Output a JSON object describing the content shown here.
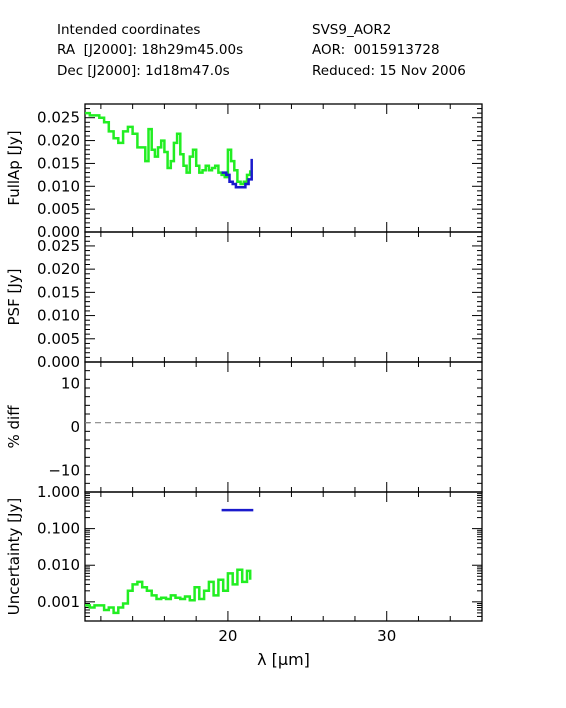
{
  "header": {
    "left": [
      "Intended coordinates",
      "RA  [J2000]: 18h29m45.00s",
      "Dec [J2000]: 1d18m47.0s"
    ],
    "right": [
      "SVS9_AOR2",
      "AOR:  0015913728",
      "Reduced: 15 Nov 2006"
    ]
  },
  "colors": {
    "green": "#22ee22",
    "blue": "#1a1acc",
    "dash": "#888888"
  },
  "chart_data": [
    {
      "type": "line",
      "ylabel": "FullAp [Jy]",
      "xlim": [
        11,
        36
      ],
      "ylim": [
        0,
        0.028
      ],
      "yticks": [
        0.0,
        0.005,
        0.01,
        0.015,
        0.02,
        0.025
      ],
      "ytick_labels": [
        "0.000",
        "0.005",
        "0.010",
        "0.015",
        "0.020",
        "0.025"
      ],
      "series": [
        {
          "color": "green",
          "x": [
            11.0,
            11.3,
            11.6,
            11.9,
            12.2,
            12.5,
            12.8,
            13.1,
            13.4,
            13.7,
            14.0,
            14.3,
            14.6,
            14.8,
            15.0,
            15.2,
            15.4,
            15.6,
            15.8,
            16.0,
            16.2,
            16.4,
            16.6,
            16.8,
            17.0,
            17.2,
            17.4,
            17.6,
            17.8,
            18.0,
            18.2,
            18.4,
            18.6,
            18.8,
            19.0,
            19.2,
            19.4,
            19.6,
            19.8,
            20.0,
            20.2,
            20.4,
            20.6,
            20.8,
            21.0,
            21.2,
            21.4
          ],
          "y": [
            0.026,
            0.0255,
            0.0255,
            0.025,
            0.024,
            0.022,
            0.0205,
            0.0195,
            0.022,
            0.023,
            0.0215,
            0.0185,
            0.0185,
            0.0155,
            0.0225,
            0.018,
            0.0165,
            0.0185,
            0.02,
            0.0175,
            0.014,
            0.0155,
            0.0195,
            0.0215,
            0.017,
            0.0145,
            0.013,
            0.0165,
            0.018,
            0.0145,
            0.013,
            0.0135,
            0.0145,
            0.0135,
            0.014,
            0.0145,
            0.013,
            0.0125,
            0.012,
            0.018,
            0.0155,
            0.0135,
            0.011,
            0.0105,
            0.011,
            0.0125,
            0.0135
          ]
        },
        {
          "color": "blue",
          "x": [
            19.6,
            19.9,
            20.1,
            20.3,
            20.5,
            20.7,
            20.9,
            21.1,
            21.3,
            21.5,
            21.5
          ],
          "y": [
            0.013,
            0.0125,
            0.011,
            0.0105,
            0.0098,
            0.0098,
            0.0098,
            0.0105,
            0.0115,
            0.0125,
            0.016
          ]
        }
      ]
    },
    {
      "type": "line",
      "ylabel": "PSF [Jy]",
      "xlim": [
        11,
        36
      ],
      "ylim": [
        0,
        0.028
      ],
      "yticks": [
        0.0,
        0.005,
        0.01,
        0.015,
        0.02,
        0.025
      ],
      "ytick_labels": [
        "0.000",
        "0.005",
        "0.010",
        "0.015",
        "0.020",
        "0.025"
      ],
      "series": []
    },
    {
      "type": "line",
      "ylabel": "% diff",
      "xlim": [
        11,
        36
      ],
      "ylim": [
        -15,
        15
      ],
      "yticks": [
        -10,
        0,
        10
      ],
      "ytick_labels": [
        "−10",
        "0",
        "10"
      ],
      "reference_line": 1,
      "series": []
    },
    {
      "type": "line",
      "ylabel": "Uncertainty [Jy]",
      "xlabel": "λ [μm]",
      "xlim": [
        11,
        36
      ],
      "ylim": [
        0.0003,
        1.0
      ],
      "log_y": true,
      "yticks": [
        0.001,
        0.01,
        0.1,
        1.0
      ],
      "ytick_labels": [
        "0.001",
        "0.010",
        "0.100",
        "1.000"
      ],
      "xticks": [
        20,
        30
      ],
      "xtick_labels": [
        "20",
        "30"
      ],
      "series": [
        {
          "color": "green",
          "x": [
            11.0,
            11.3,
            11.6,
            11.9,
            12.2,
            12.5,
            12.8,
            13.1,
            13.4,
            13.7,
            14.0,
            14.3,
            14.6,
            14.9,
            15.2,
            15.5,
            15.8,
            16.1,
            16.4,
            16.7,
            17.0,
            17.3,
            17.6,
            17.9,
            18.2,
            18.5,
            18.8,
            19.1,
            19.4,
            19.7,
            20.0,
            20.3,
            20.6,
            20.9,
            21.2,
            21.4
          ],
          "y": [
            0.0008,
            0.0007,
            0.0008,
            0.0008,
            0.0006,
            0.0007,
            0.0005,
            0.0007,
            0.0009,
            0.002,
            0.003,
            0.0035,
            0.0025,
            0.002,
            0.0015,
            0.0012,
            0.0013,
            0.0012,
            0.0015,
            0.0013,
            0.0012,
            0.0014,
            0.0011,
            0.0025,
            0.0012,
            0.002,
            0.0035,
            0.0015,
            0.004,
            0.002,
            0.006,
            0.003,
            0.0075,
            0.0035,
            0.007,
            0.004
          ]
        },
        {
          "color": "blue",
          "x": [
            19.6,
            21.6
          ],
          "y": [
            0.32,
            0.32
          ]
        }
      ]
    }
  ]
}
